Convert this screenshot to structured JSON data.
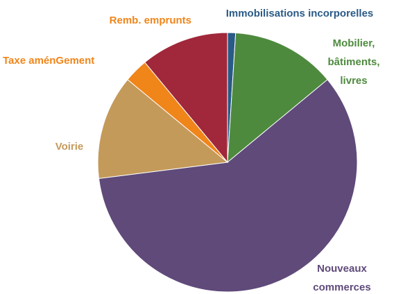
{
  "chart_data": {
    "type": "pie",
    "categories": [
      "Immobilisations incorporelles",
      "Mobilier, bâtiments, livres",
      "Nouveaux commerces",
      "Voirie",
      "Taxe aménGement",
      "Remb. emprunts"
    ],
    "values": [
      1,
      13,
      59,
      13,
      3,
      11
    ],
    "colors": [
      "#2a5a86",
      "#4e8a3e",
      "#5f4a7a",
      "#c49a5a",
      "#f0851a",
      "#a0283a"
    ],
    "label_colors": [
      "#2a5a86",
      "#4e8a3e",
      "#5f4a7a",
      "#c49a5a",
      "#f0851a",
      "#f0851a"
    ]
  }
}
